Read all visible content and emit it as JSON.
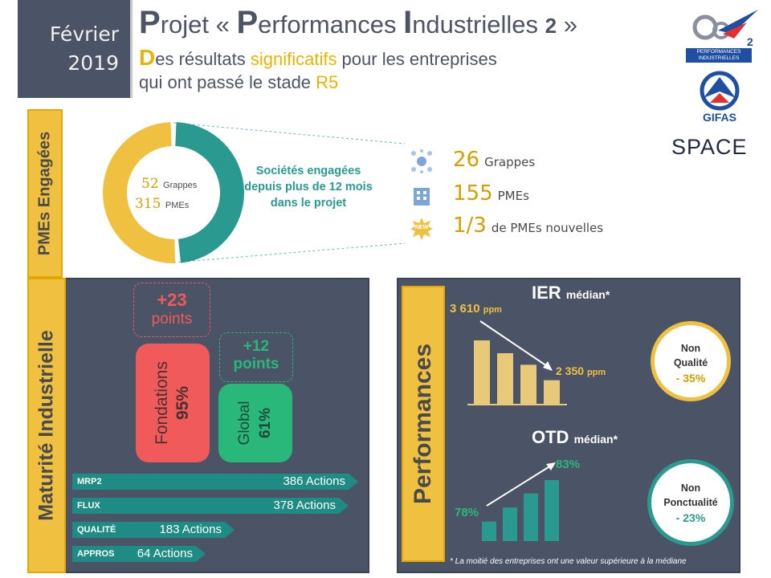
{
  "header": {
    "date_month": "Février",
    "date_year": "2019",
    "title_p": "P",
    "title_a": "rojet « ",
    "title_p2": "P",
    "title_b": "erformances ",
    "title_i": "I",
    "title_c": "ndustrielles ",
    "title_num": "2",
    "title_end": " »",
    "sub1_d": "D",
    "sub1_a": "es résultats ",
    "sub1_b": "significatifs",
    "sub1_c": " pour les entreprises",
    "sub2_a": "qui ont passé le stade ",
    "sub2_b": "R5"
  },
  "logos": {
    "pi2_line1": "PERFORMANCES",
    "pi2_line2": "INDUSTRIELLES",
    "pi2_num": "2",
    "gifas": "GIFAS",
    "space": "SPACE"
  },
  "engaged": {
    "tab_label": "PMEs Engagées",
    "donut_num1": "52",
    "donut_lbl1": "Grappes",
    "donut_num2": "315",
    "donut_lbl2": "PMEs",
    "donut_share": 0.49,
    "companies_text": "Sociétés engagées depuis plus de 12 mois dans le projet",
    "stats": [
      {
        "value": "26",
        "label": "Grappes",
        "icon": "network-icon"
      },
      {
        "value": "155",
        "label": "PMEs",
        "icon": "building-icon"
      },
      {
        "value": "1/3",
        "label": "de PMEs nouvelles",
        "icon": "new-badge-icon",
        "badge": "NEW"
      }
    ]
  },
  "maturity": {
    "tab_label": "Maturité Industrielle",
    "gain_foundations_value": "+23",
    "gain_foundations_unit": "points",
    "gain_global_value": "+12",
    "gain_global_unit": "points",
    "foundations_label": "Fondations",
    "foundations_value": "95%",
    "global_label": "Global",
    "global_value": "61%",
    "actions": [
      {
        "label": "MRP2",
        "value": "386 Actions"
      },
      {
        "label": "FLUX",
        "value": "378 Actions"
      },
      {
        "label": "QUALITÉ",
        "value": "183 Actions"
      },
      {
        "label": "APPROS",
        "value": "64 Actions"
      }
    ]
  },
  "performance": {
    "tab_label": "Performances",
    "ier_title": "IER",
    "ier_suffix": "médian*",
    "ier_start": "3 610",
    "ier_end": "2 350",
    "ier_unit": "ppm",
    "ier_bars": [
      1.0,
      0.8,
      0.62,
      0.38
    ],
    "otd_title": "OTD",
    "otd_suffix": "médian*",
    "otd_start": "78%",
    "otd_end": "83%",
    "otd_bars": [
      0.32,
      0.55,
      0.78,
      1.0
    ],
    "circle1_l1": "Non",
    "circle1_l2": "Qualité",
    "circle1_v": "- 35%",
    "circle2_l1": "Non",
    "circle2_l2": "Ponctualité",
    "circle2_v": "- 23%",
    "footnote": "* La moitié des entreprises ont une valeur supérieure à la médiane"
  },
  "colors": {
    "gold": "#f0c040",
    "teal": "#2a9a90",
    "slate": "#4a5466",
    "red": "#f05a5a",
    "green": "#2ab87a"
  }
}
